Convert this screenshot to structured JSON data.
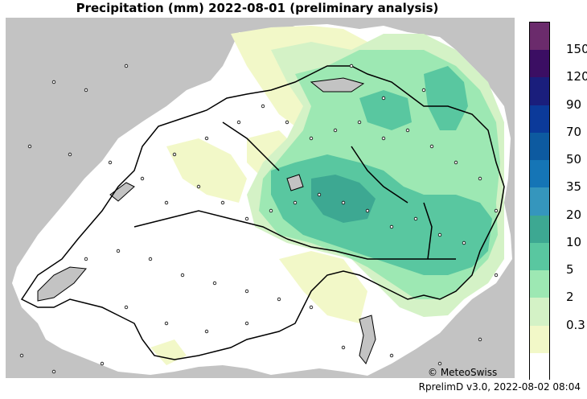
{
  "title": "Precipitation (mm) 2022-08-01 (preliminary analysis)",
  "credit": "© MeteoSwiss",
  "footer": "RprelimD v3.0, 2022-08-02 08:04",
  "legend": {
    "levels": [
      {
        "label": "",
        "color": "#ffffff"
      },
      {
        "label": "0.3",
        "color": "#f2f8c8"
      },
      {
        "label": "2",
        "color": "#d4f2c6"
      },
      {
        "label": "5",
        "color": "#9de8b3"
      },
      {
        "label": "10",
        "color": "#59c7a0"
      },
      {
        "label": "20",
        "color": "#3da892"
      },
      {
        "label": "35",
        "color": "#3596bd"
      },
      {
        "label": "50",
        "color": "#1575b6"
      },
      {
        "label": "70",
        "color": "#0d5aa0"
      },
      {
        "label": "90",
        "color": "#0b3a9a"
      },
      {
        "label": "120",
        "color": "#1a1e7c"
      },
      {
        "label": "150",
        "color": "#3b0e63"
      },
      {
        "label": "",
        "color": "#6b2b6c"
      }
    ]
  },
  "colors": {
    "outside": "#c3c3c3",
    "background_land": "#ffffff",
    "lakes": "#c3c3c3",
    "borders": "#000000"
  }
}
